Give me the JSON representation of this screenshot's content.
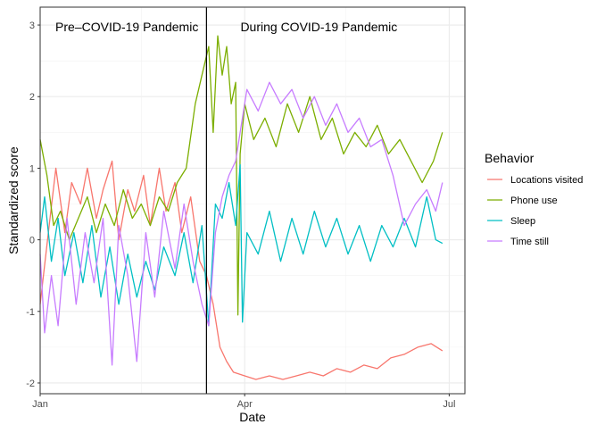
{
  "chart_data": {
    "type": "line",
    "title": "",
    "xlabel": "Date",
    "ylabel": "Standardized score",
    "x_ticks": [
      "Jan",
      "Apr",
      "Jul"
    ],
    "y_ticks": [
      -2,
      -1,
      0,
      1,
      2,
      3
    ],
    "ylim": [
      -2.15,
      3.25
    ],
    "xlim": [
      "2020-01-01",
      "2020-07-08"
    ],
    "vline_date": "2020-03-15",
    "annotations": [
      "Pre–COVID-19 Pandemic",
      "During COVID-19 Pandemic"
    ],
    "legend_title": "Behavior",
    "legend_position": "right",
    "grid": true,
    "series": [
      {
        "name": "Locations visited",
        "color": "#F8766D",
        "points": [
          [
            "2020-01-01",
            -0.9
          ],
          [
            "2020-01-05",
            0.2
          ],
          [
            "2020-01-08",
            1.0
          ],
          [
            "2020-01-12",
            0.1
          ],
          [
            "2020-01-15",
            0.8
          ],
          [
            "2020-01-19",
            0.5
          ],
          [
            "2020-01-22",
            1.0
          ],
          [
            "2020-01-26",
            0.3
          ],
          [
            "2020-01-29",
            0.7
          ],
          [
            "2020-02-02",
            1.1
          ],
          [
            "2020-02-05",
            0.0
          ],
          [
            "2020-02-09",
            0.7
          ],
          [
            "2020-02-12",
            0.4
          ],
          [
            "2020-02-16",
            0.9
          ],
          [
            "2020-02-19",
            0.2
          ],
          [
            "2020-02-23",
            1.0
          ],
          [
            "2020-02-26",
            0.4
          ],
          [
            "2020-03-01",
            0.8
          ],
          [
            "2020-03-04",
            0.1
          ],
          [
            "2020-03-08",
            0.6
          ],
          [
            "2020-03-12",
            -0.3
          ],
          [
            "2020-03-15",
            -0.5
          ],
          [
            "2020-03-18",
            -0.9
          ],
          [
            "2020-03-21",
            -1.5
          ],
          [
            "2020-03-24",
            -1.7
          ],
          [
            "2020-03-27",
            -1.85
          ],
          [
            "2020-04-01",
            -1.9
          ],
          [
            "2020-04-06",
            -1.95
          ],
          [
            "2020-04-12",
            -1.9
          ],
          [
            "2020-04-18",
            -1.95
          ],
          [
            "2020-04-24",
            -1.9
          ],
          [
            "2020-04-30",
            -1.85
          ],
          [
            "2020-05-06",
            -1.9
          ],
          [
            "2020-05-12",
            -1.8
          ],
          [
            "2020-05-18",
            -1.85
          ],
          [
            "2020-05-24",
            -1.75
          ],
          [
            "2020-05-30",
            -1.8
          ],
          [
            "2020-06-05",
            -1.65
          ],
          [
            "2020-06-11",
            -1.6
          ],
          [
            "2020-06-17",
            -1.5
          ],
          [
            "2020-06-23",
            -1.45
          ],
          [
            "2020-06-28",
            -1.55
          ]
        ]
      },
      {
        "name": "Phone use",
        "color": "#7CAE00",
        "points": [
          [
            "2020-01-01",
            1.4
          ],
          [
            "2020-01-04",
            0.9
          ],
          [
            "2020-01-07",
            0.2
          ],
          [
            "2020-01-10",
            0.4
          ],
          [
            "2020-01-14",
            0.0
          ],
          [
            "2020-01-18",
            0.3
          ],
          [
            "2020-01-22",
            0.6
          ],
          [
            "2020-01-26",
            0.1
          ],
          [
            "2020-01-30",
            0.5
          ],
          [
            "2020-02-03",
            0.2
          ],
          [
            "2020-02-07",
            0.7
          ],
          [
            "2020-02-11",
            0.3
          ],
          [
            "2020-02-15",
            0.5
          ],
          [
            "2020-02-19",
            0.2
          ],
          [
            "2020-02-23",
            0.6
          ],
          [
            "2020-02-27",
            0.4
          ],
          [
            "2020-03-02",
            0.8
          ],
          [
            "2020-03-06",
            1.0
          ],
          [
            "2020-03-10",
            1.9
          ],
          [
            "2020-03-13",
            2.3
          ],
          [
            "2020-03-16",
            2.7
          ],
          [
            "2020-03-18",
            1.5
          ],
          [
            "2020-03-20",
            2.85
          ],
          [
            "2020-03-22",
            2.3
          ],
          [
            "2020-03-24",
            2.7
          ],
          [
            "2020-03-26",
            1.9
          ],
          [
            "2020-03-28",
            2.2
          ],
          [
            "2020-03-29",
            -1.05
          ],
          [
            "2020-03-30",
            1.2
          ],
          [
            "2020-04-01",
            1.9
          ],
          [
            "2020-04-05",
            1.4
          ],
          [
            "2020-04-10",
            1.7
          ],
          [
            "2020-04-15",
            1.3
          ],
          [
            "2020-04-20",
            1.9
          ],
          [
            "2020-04-25",
            1.5
          ],
          [
            "2020-04-30",
            2.0
          ],
          [
            "2020-05-05",
            1.4
          ],
          [
            "2020-05-10",
            1.7
          ],
          [
            "2020-05-15",
            1.2
          ],
          [
            "2020-05-20",
            1.5
          ],
          [
            "2020-05-25",
            1.3
          ],
          [
            "2020-05-30",
            1.6
          ],
          [
            "2020-06-04",
            1.2
          ],
          [
            "2020-06-09",
            1.4
          ],
          [
            "2020-06-14",
            1.1
          ],
          [
            "2020-06-19",
            0.8
          ],
          [
            "2020-06-24",
            1.1
          ],
          [
            "2020-06-28",
            1.5
          ]
        ]
      },
      {
        "name": "Sleep",
        "color": "#00BFC4",
        "points": [
          [
            "2020-01-01",
            0.1
          ],
          [
            "2020-01-03",
            0.6
          ],
          [
            "2020-01-06",
            -0.3
          ],
          [
            "2020-01-09",
            0.3
          ],
          [
            "2020-01-12",
            -0.5
          ],
          [
            "2020-01-16",
            0.1
          ],
          [
            "2020-01-20",
            -0.6
          ],
          [
            "2020-01-24",
            0.2
          ],
          [
            "2020-01-28",
            -0.8
          ],
          [
            "2020-02-01",
            -0.1
          ],
          [
            "2020-02-05",
            -0.9
          ],
          [
            "2020-02-09",
            -0.2
          ],
          [
            "2020-02-13",
            -0.8
          ],
          [
            "2020-02-17",
            -0.3
          ],
          [
            "2020-02-21",
            -0.7
          ],
          [
            "2020-02-25",
            -0.1
          ],
          [
            "2020-03-01",
            -0.5
          ],
          [
            "2020-03-05",
            0.1
          ],
          [
            "2020-03-09",
            -0.6
          ],
          [
            "2020-03-13",
            0.2
          ],
          [
            "2020-03-16",
            -1.2
          ],
          [
            "2020-03-19",
            0.5
          ],
          [
            "2020-03-22",
            0.3
          ],
          [
            "2020-03-25",
            0.8
          ],
          [
            "2020-03-28",
            0.2
          ],
          [
            "2020-03-30",
            1.05
          ],
          [
            "2020-03-31",
            -1.15
          ],
          [
            "2020-04-02",
            0.1
          ],
          [
            "2020-04-07",
            -0.2
          ],
          [
            "2020-04-12",
            0.4
          ],
          [
            "2020-04-17",
            -0.3
          ],
          [
            "2020-04-22",
            0.3
          ],
          [
            "2020-04-27",
            -0.2
          ],
          [
            "2020-05-02",
            0.4
          ],
          [
            "2020-05-07",
            -0.1
          ],
          [
            "2020-05-12",
            0.3
          ],
          [
            "2020-05-17",
            -0.2
          ],
          [
            "2020-05-22",
            0.2
          ],
          [
            "2020-05-27",
            -0.3
          ],
          [
            "2020-06-01",
            0.2
          ],
          [
            "2020-06-06",
            -0.1
          ],
          [
            "2020-06-11",
            0.3
          ],
          [
            "2020-06-16",
            -0.1
          ],
          [
            "2020-06-21",
            0.6
          ],
          [
            "2020-06-25",
            0.0
          ],
          [
            "2020-06-28",
            -0.05
          ]
        ]
      },
      {
        "name": "Time still",
        "color": "#C77CFF",
        "points": [
          [
            "2020-01-01",
            -0.2
          ],
          [
            "2020-01-03",
            -1.3
          ],
          [
            "2020-01-06",
            -0.5
          ],
          [
            "2020-01-09",
            -1.2
          ],
          [
            "2020-01-13",
            0.3
          ],
          [
            "2020-01-17",
            -0.9
          ],
          [
            "2020-01-21",
            0.1
          ],
          [
            "2020-01-25",
            -0.6
          ],
          [
            "2020-01-29",
            0.3
          ],
          [
            "2020-02-02",
            -1.75
          ],
          [
            "2020-02-05",
            0.2
          ],
          [
            "2020-02-09",
            -0.5
          ],
          [
            "2020-02-13",
            -1.7
          ],
          [
            "2020-02-17",
            0.1
          ],
          [
            "2020-02-21",
            -0.8
          ],
          [
            "2020-02-25",
            0.4
          ],
          [
            "2020-03-01",
            -0.4
          ],
          [
            "2020-03-05",
            0.5
          ],
          [
            "2020-03-09",
            -0.3
          ],
          [
            "2020-03-13",
            -0.9
          ],
          [
            "2020-03-16",
            -1.2
          ],
          [
            "2020-03-19",
            0.1
          ],
          [
            "2020-03-22",
            0.6
          ],
          [
            "2020-03-25",
            0.9
          ],
          [
            "2020-03-28",
            1.1
          ],
          [
            "2020-03-30",
            1.5
          ],
          [
            "2020-04-02",
            2.1
          ],
          [
            "2020-04-07",
            1.8
          ],
          [
            "2020-04-12",
            2.2
          ],
          [
            "2020-04-17",
            1.9
          ],
          [
            "2020-04-22",
            2.1
          ],
          [
            "2020-04-27",
            1.7
          ],
          [
            "2020-05-02",
            2.0
          ],
          [
            "2020-05-07",
            1.6
          ],
          [
            "2020-05-12",
            1.9
          ],
          [
            "2020-05-17",
            1.5
          ],
          [
            "2020-05-22",
            1.7
          ],
          [
            "2020-05-27",
            1.3
          ],
          [
            "2020-06-01",
            1.4
          ],
          [
            "2020-06-06",
            0.9
          ],
          [
            "2020-06-11",
            0.2
          ],
          [
            "2020-06-16",
            0.5
          ],
          [
            "2020-06-21",
            0.7
          ],
          [
            "2020-06-25",
            0.4
          ],
          [
            "2020-06-28",
            0.8
          ]
        ]
      }
    ]
  }
}
